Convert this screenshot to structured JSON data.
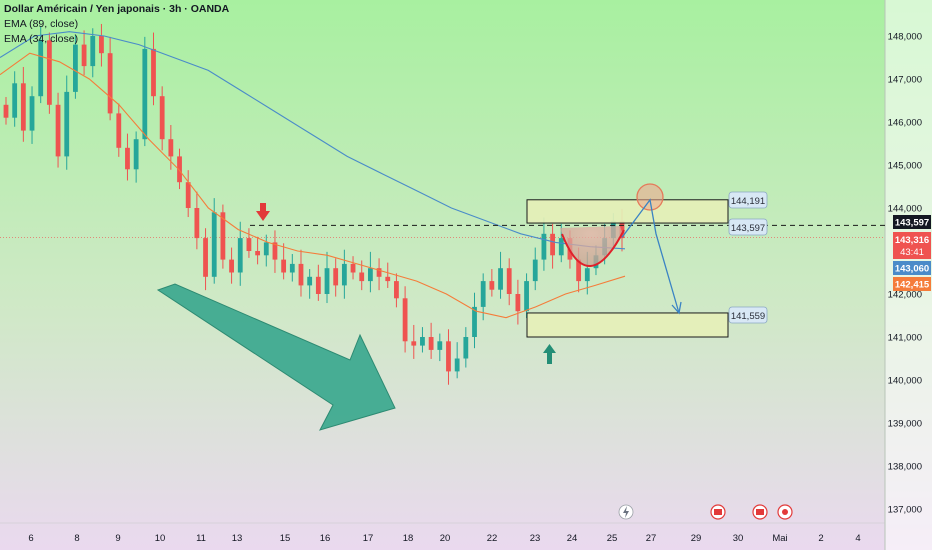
{
  "legend": {
    "title": "Dollar Américain / Yen japonais · 3h · OANDA",
    "ema89": "EMA (89, close)",
    "ema34": "EMA (34, close)"
  },
  "colors": {
    "up": "#26a69a",
    "down": "#ef5350",
    "ema89": "#4a8bc9",
    "ema34": "#f57c3a",
    "zone": "#e5f0b8",
    "arrow": "#3faa90",
    "bg_top": "#a8f0a0",
    "bg_bottom": "#ead9ef"
  },
  "annotations": {
    "resistance_label": "144,191",
    "level_label": "143,597",
    "support_label": "141,559"
  },
  "price_tags": [
    {
      "text": "143,597",
      "color": "#131722"
    },
    {
      "text": "143,316",
      "color": "#ef5350"
    },
    {
      "text": "43:41",
      "color": "#ef5350"
    },
    {
      "text": "143,060",
      "color": "#4a8bc9"
    },
    {
      "text": "142,415",
      "color": "#f57c3a"
    }
  ],
  "chart_data": {
    "type": "candlestick",
    "y_ticks": [
      {
        "v": 148,
        "label": "148,000"
      },
      {
        "v": 147,
        "label": "147,000"
      },
      {
        "v": 146,
        "label": "146,000"
      },
      {
        "v": 145,
        "label": "145,000"
      },
      {
        "v": 144,
        "label": "144,000"
      },
      {
        "v": 142,
        "label": "142,000"
      },
      {
        "v": 141,
        "label": "141,000"
      },
      {
        "v": 140,
        "label": "140,000"
      },
      {
        "v": 139,
        "label": "139,000"
      },
      {
        "v": 138,
        "label": "138,000"
      },
      {
        "v": 137,
        "label": "137,000"
      }
    ],
    "x_labels": [
      "6",
      "8",
      "9",
      "10",
      "11",
      "13",
      "15",
      "16",
      "17",
      "18",
      "20",
      "22",
      "23",
      "24",
      "25",
      "27",
      "29",
      "30",
      "Mai",
      "2",
      "4"
    ],
    "ylim": [
      136.6,
      148.5
    ],
    "close_series": [
      146.1,
      146.9,
      145.8,
      146.6,
      147.9,
      146.4,
      145.2,
      146.7,
      147.8,
      147.3,
      148.0,
      147.6,
      146.2,
      145.4,
      144.9,
      145.6,
      147.7,
      146.6,
      145.6,
      145.2,
      144.6,
      144.0,
      143.3,
      142.4,
      143.9,
      142.8,
      142.5,
      143.3,
      143.0,
      142.9,
      143.2,
      142.8,
      142.5,
      142.7,
      142.2,
      142.4,
      142.0,
      142.6,
      142.2,
      142.7,
      142.5,
      142.3,
      142.6,
      142.4,
      142.3,
      141.9,
      140.9,
      140.8,
      141.0,
      140.7,
      140.9,
      140.2,
      140.5,
      141.0,
      141.7,
      142.3,
      142.1,
      142.6,
      142.0,
      141.6,
      142.3,
      142.8,
      143.4,
      142.9,
      143.3,
      142.8,
      142.3,
      142.6,
      142.9,
      143.3,
      143.7,
      143.3
    ],
    "ema89_series": [
      147.5,
      148.0,
      148.1,
      148.0,
      147.8,
      147.5,
      147.2,
      146.7,
      146.2,
      145.7,
      145.2,
      144.8,
      144.4,
      144.0,
      143.7,
      143.4,
      143.2,
      143.1,
      143.05
    ],
    "ema34_series": [
      147.1,
      147.6,
      147.4,
      147.0,
      146.4,
      145.6,
      144.9,
      144.0,
      143.5,
      143.2,
      143.0,
      142.9,
      142.7,
      142.5,
      142.3,
      142.0,
      141.6,
      141.45,
      141.7,
      142.0,
      142.2,
      142.415
    ],
    "levels": [
      {
        "name": "resistance zone",
        "from": 143.65,
        "to": 144.191
      },
      {
        "name": "level",
        "value": 143.597
      },
      {
        "name": "support zone",
        "from": 141.0,
        "to": 141.559
      }
    ],
    "projection": [
      143.316,
      144.191,
      143.4,
      141.559
    ],
    "grid": false,
    "legend_position": "top-left"
  }
}
